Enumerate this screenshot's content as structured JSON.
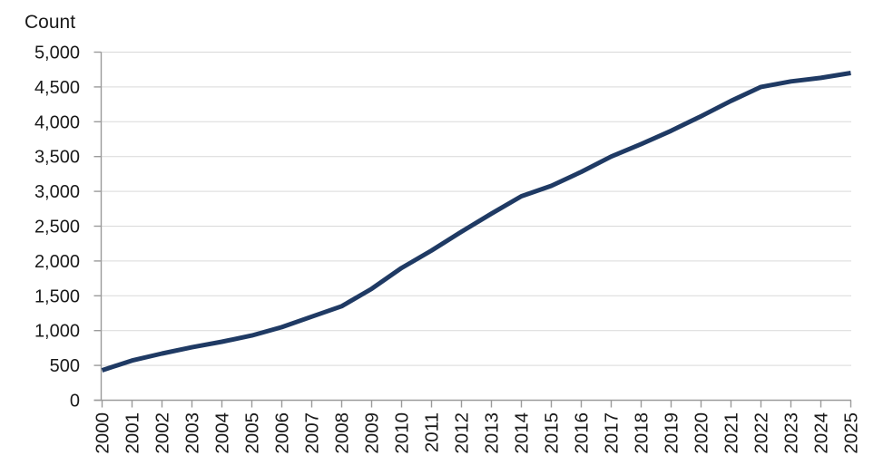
{
  "page": {
    "background": "#ffffff"
  },
  "chart_data": {
    "type": "line",
    "title": "",
    "xlabel": "",
    "ylabel": "Count",
    "x": [
      2000,
      2001,
      2002,
      2003,
      2004,
      2005,
      2006,
      2007,
      2008,
      2009,
      2010,
      2011,
      2012,
      2013,
      2014,
      2015,
      2016,
      2017,
      2018,
      2019,
      2020,
      2021,
      2022,
      2023,
      2024,
      2025
    ],
    "series": [
      {
        "name": "Count",
        "color": "#1f3a64",
        "values": [
          430,
          570,
          670,
          760,
          840,
          930,
          1050,
          1200,
          1350,
          1600,
          1900,
          2150,
          2420,
          2680,
          2930,
          3080,
          3280,
          3500,
          3680,
          3870,
          4080,
          4300,
          4500,
          4580,
          4630,
          4700
        ]
      }
    ],
    "ylim": [
      0,
      5000
    ],
    "ytick_step": 500,
    "ytick_labels": [
      "0",
      "500",
      "1,000",
      "1,500",
      "2,000",
      "2,500",
      "3,000",
      "3,500",
      "4,000",
      "4,500",
      "5,000"
    ],
    "grid": "horizontal",
    "legend_position": "none",
    "x_label_rotation": -90,
    "colors": {
      "line": "#1f3a64",
      "gridline": "#d9d9d9",
      "axis": "#9b9b9b",
      "text": "#1a1a1a",
      "background": "#ffffff"
    }
  }
}
